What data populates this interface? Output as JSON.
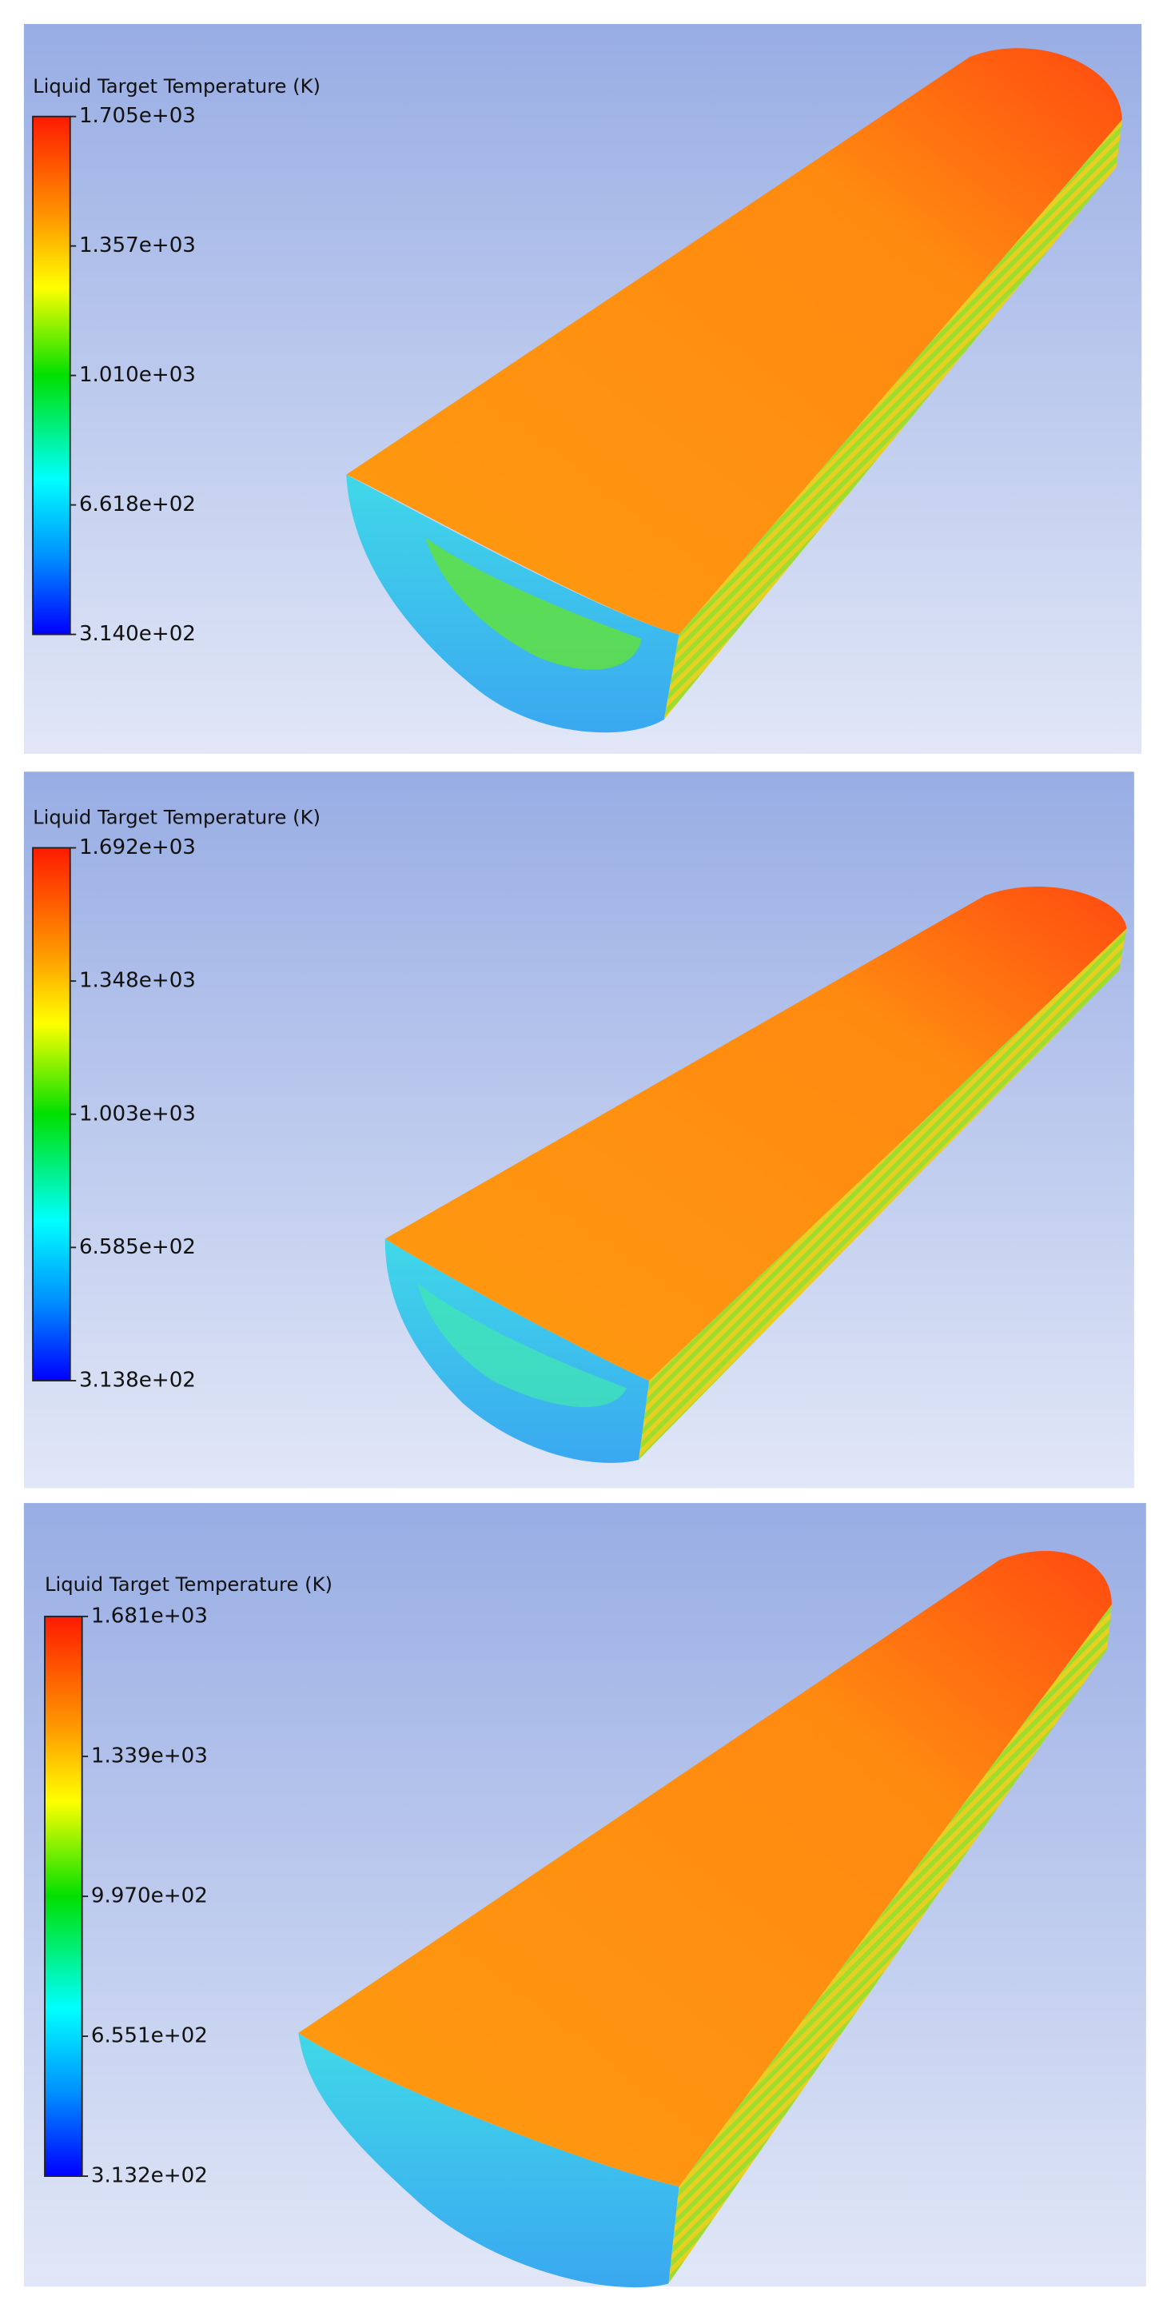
{
  "panels": [
    {
      "legend": {
        "title": "Liquid Target Temperature (K)",
        "labels": [
          "1.705e+03",
          "1.357e+03",
          "1.010e+03",
          "6.618e+02",
          "3.140e+02"
        ]
      }
    },
    {
      "legend": {
        "title": "Liquid Target Temperature (K)",
        "labels": [
          "1.692e+03",
          "1.348e+03",
          "1.003e+03",
          "6.585e+02",
          "3.138e+02"
        ]
      }
    },
    {
      "legend": {
        "title": "Liquid Target Temperature (K)",
        "labels": [
          "1.681e+03",
          "1.339e+03",
          "9.970e+02",
          "6.551e+02",
          "3.132e+02"
        ]
      }
    }
  ]
}
